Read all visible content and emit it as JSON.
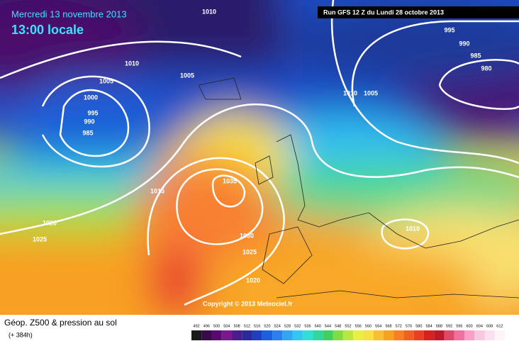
{
  "header": {
    "date": "Mercredi 13 novembre 2013",
    "time": "13:00 locale",
    "run": "Run GFS 12 Z du Lundi 28 octobre 2013"
  },
  "isobar_labels": [
    1010,
    1010,
    1005,
    1005,
    1000,
    995,
    990,
    985,
    1015,
    1020,
    1025,
    1035,
    1030,
    1025,
    1020,
    995,
    990,
    985,
    980,
    1010,
    1005,
    1010
  ],
  "copyright": "Copyright © 2013 Meteociel.fr",
  "legend": {
    "title": "Géop. Z500 & pression au sol",
    "subtitle": "(+ 384h)",
    "labels": [
      492,
      496,
      500,
      504,
      508,
      512,
      516,
      520,
      524,
      528,
      532,
      536,
      540,
      544,
      548,
      552,
      556,
      560,
      564,
      568,
      572,
      576,
      580,
      584,
      588,
      592,
      596,
      600,
      604,
      608,
      612
    ],
    "colors": [
      "#1a1a1a",
      "#3a0a4a",
      "#5a0a6e",
      "#7a1a8a",
      "#4a1e8a",
      "#2a2a9a",
      "#1f3fc0",
      "#1e5ee0",
      "#2a80f0",
      "#30a6f4",
      "#30c8f0",
      "#30e0d8",
      "#30d8a0",
      "#40d060",
      "#80dc40",
      "#b8e840",
      "#e8f040",
      "#f8e040",
      "#f8c030",
      "#f8a020",
      "#f88020",
      "#f06020",
      "#e84020",
      "#d82020",
      "#c01828",
      "#e04868",
      "#f070a0",
      "#f8a0c8",
      "#f8c8e0",
      "#fce0f0",
      "#fff4fa"
    ]
  }
}
